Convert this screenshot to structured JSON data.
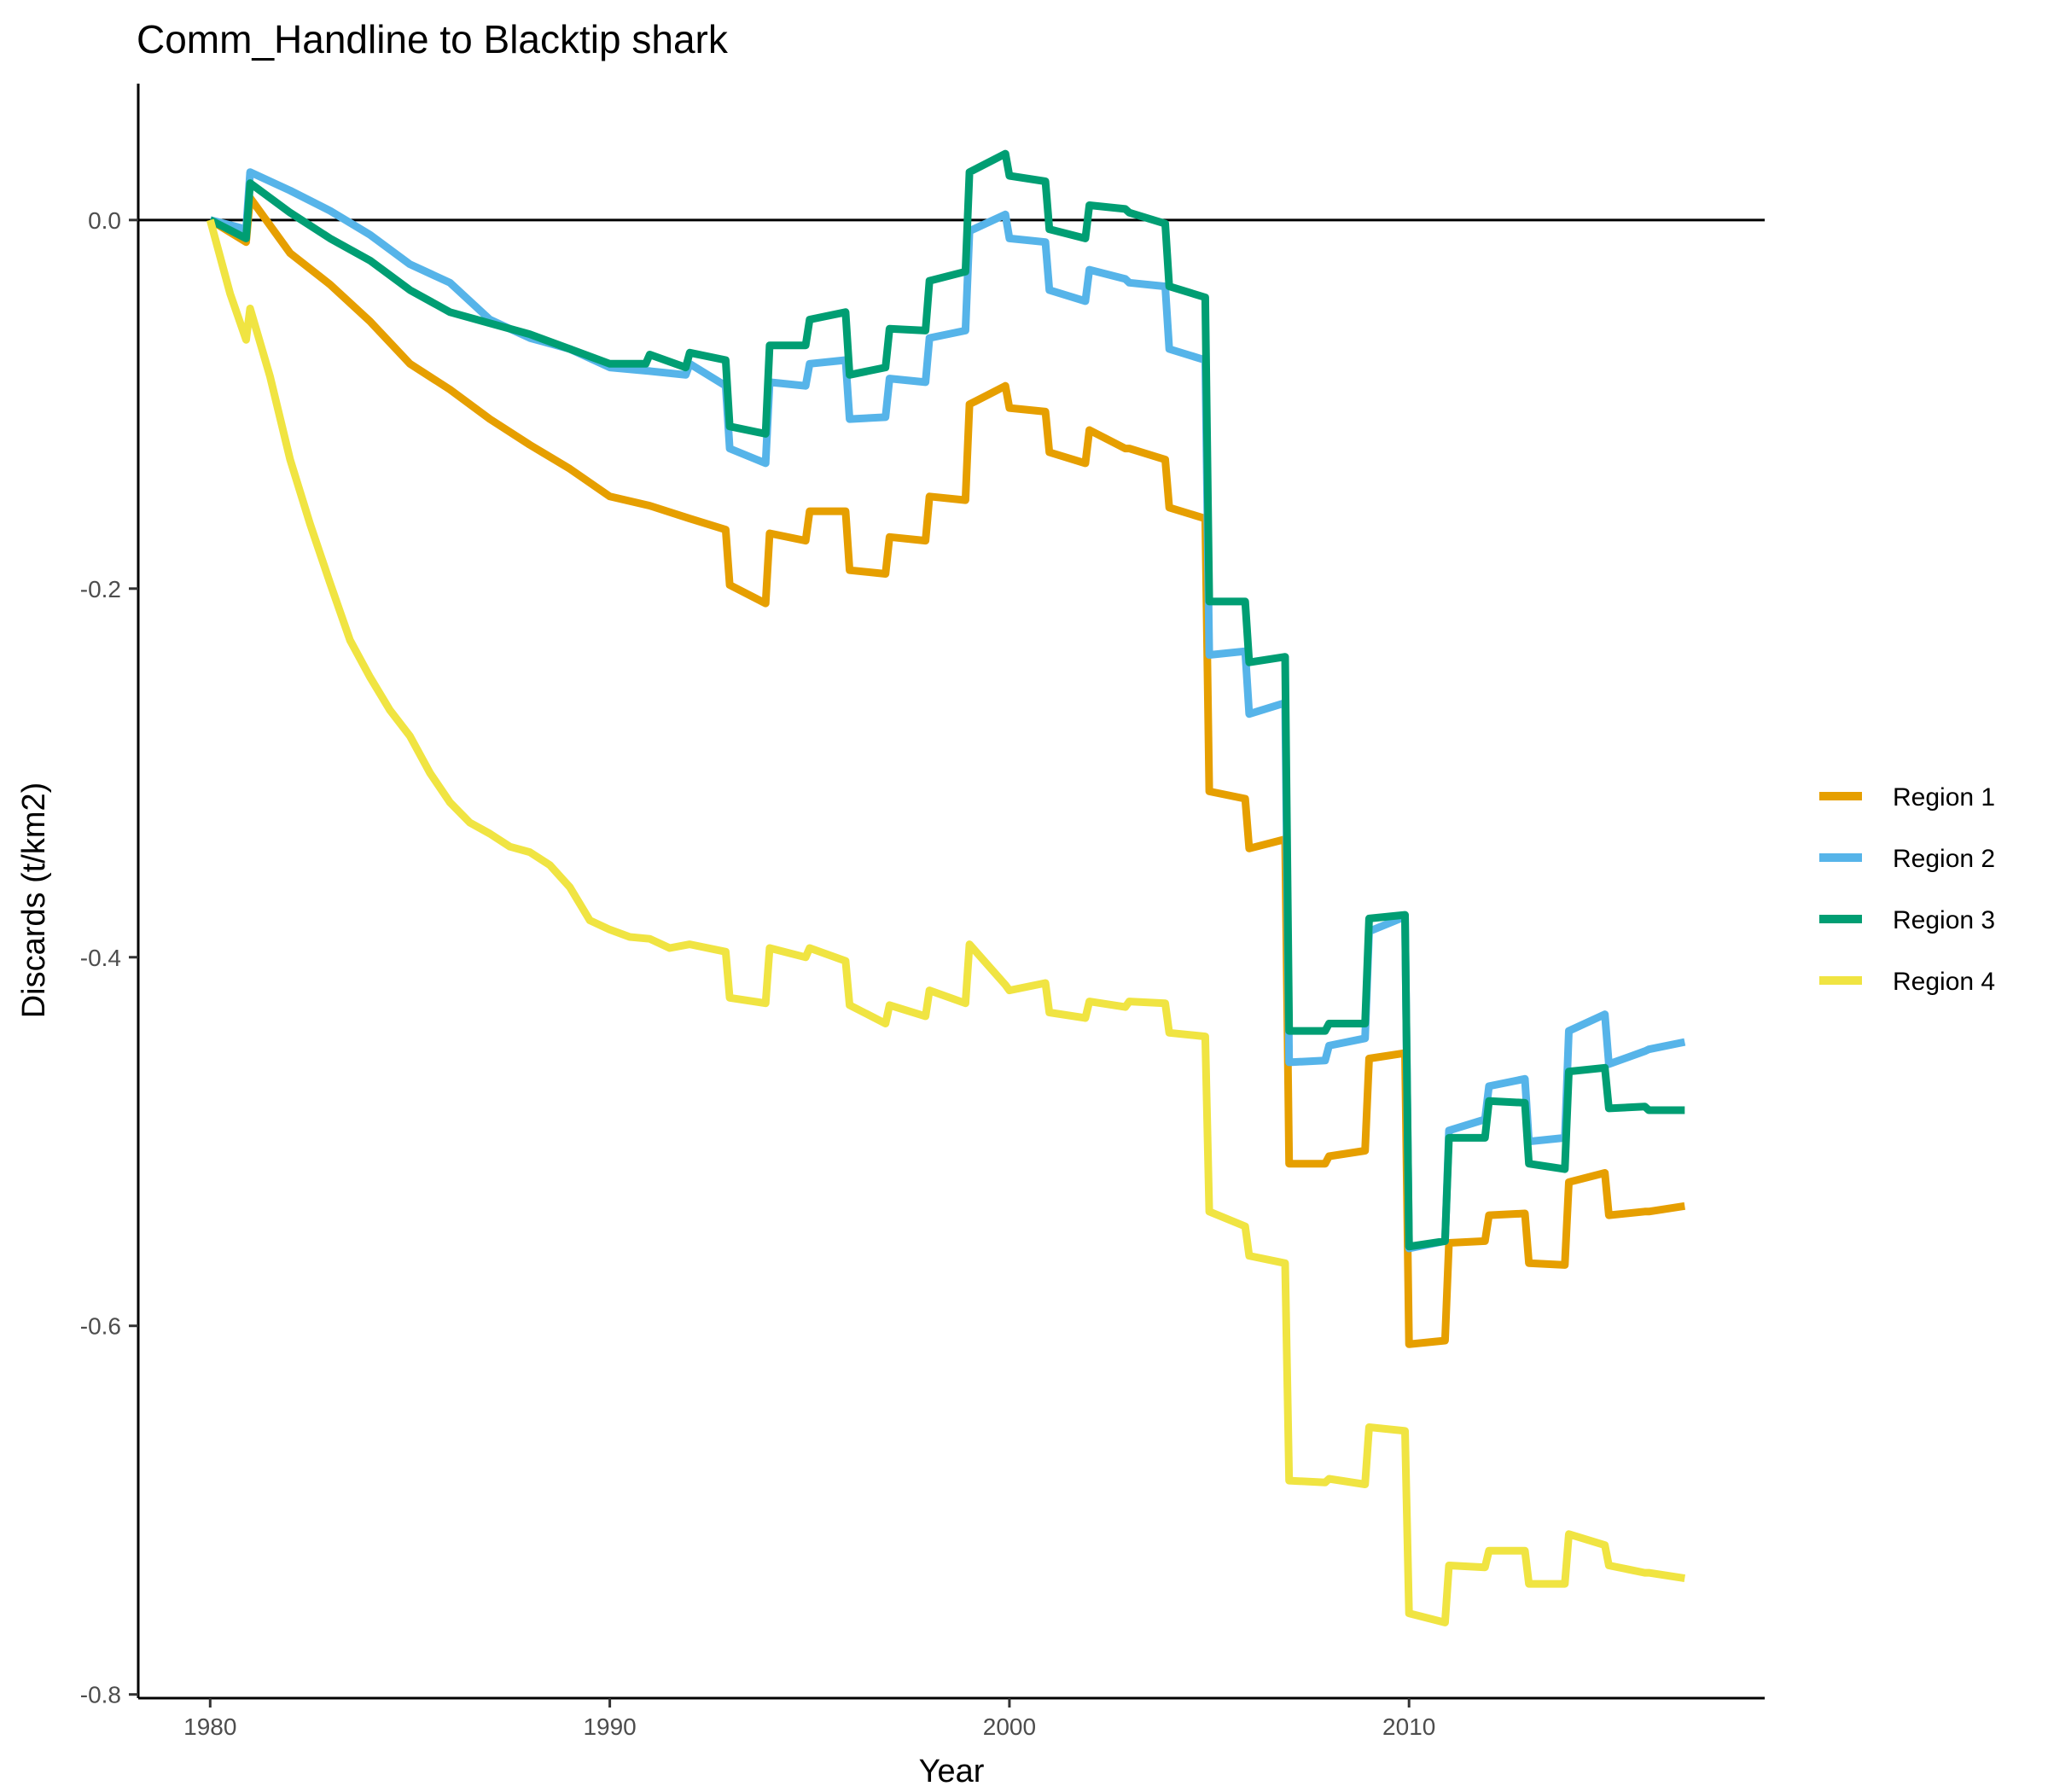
{
  "chart_data": {
    "type": "line",
    "title": "Comm_Handline to Blacktip shark",
    "xlabel": "Year",
    "ylabel": "Discards (t/km2)",
    "xlim": [
      1978.2,
      2018.9
    ],
    "ylim": [
      -0.802,
      0.074
    ],
    "xticks": [
      1980,
      1990,
      2000,
      2010
    ],
    "xtick_labels": [
      "1980",
      "1990",
      "2000",
      "2010"
    ],
    "yticks": [
      0.0,
      -0.2,
      -0.4,
      -0.6,
      -0.8
    ],
    "ytick_labels": [
      "0.0",
      "-0.2",
      "-0.4",
      "-0.6",
      "-0.8"
    ],
    "reference_line_y": 0,
    "grid": false,
    "legend_position": "right",
    "series": [
      {
        "name": "Region 1",
        "color": "#E69F00",
        "points": [
          [
            1980.0,
            0.0
          ],
          [
            1980.9,
            -0.012
          ],
          [
            1981.0,
            0.012
          ],
          [
            1982.0,
            -0.018
          ],
          [
            1983.0,
            -0.035
          ],
          [
            1984.0,
            -0.055
          ],
          [
            1985.0,
            -0.078
          ],
          [
            1986.0,
            -0.092
          ],
          [
            1987.0,
            -0.108
          ],
          [
            1988.0,
            -0.122
          ],
          [
            1989.0,
            -0.135
          ],
          [
            1990.0,
            -0.15
          ],
          [
            1991.0,
            -0.155
          ],
          [
            1992.0,
            -0.162
          ],
          [
            1992.9,
            -0.168
          ],
          [
            1993.0,
            -0.198
          ],
          [
            1993.9,
            -0.208
          ],
          [
            1994.0,
            -0.17
          ],
          [
            1994.9,
            -0.174
          ],
          [
            1995.0,
            -0.158
          ],
          [
            1995.9,
            -0.158
          ],
          [
            1996.0,
            -0.19
          ],
          [
            1996.9,
            -0.192
          ],
          [
            1997.0,
            -0.172
          ],
          [
            1997.9,
            -0.174
          ],
          [
            1998.0,
            -0.15
          ],
          [
            1998.9,
            -0.152
          ],
          [
            1999.0,
            -0.1
          ],
          [
            1999.9,
            -0.09
          ],
          [
            2000.0,
            -0.102
          ],
          [
            2000.9,
            -0.104
          ],
          [
            2001.0,
            -0.126
          ],
          [
            2001.9,
            -0.132
          ],
          [
            2002.0,
            -0.114
          ],
          [
            2002.9,
            -0.124
          ],
          [
            2003.0,
            -0.124
          ],
          [
            2003.9,
            -0.13
          ],
          [
            2004.0,
            -0.156
          ],
          [
            2004.9,
            -0.162
          ],
          [
            2005.0,
            -0.31
          ],
          [
            2005.9,
            -0.314
          ],
          [
            2006.0,
            -0.341
          ],
          [
            2006.9,
            -0.336
          ],
          [
            2007.0,
            -0.512
          ],
          [
            2007.9,
            -0.512
          ],
          [
            2008.0,
            -0.508
          ],
          [
            2008.9,
            -0.505
          ],
          [
            2009.0,
            -0.455
          ],
          [
            2009.9,
            -0.452
          ],
          [
            2010.0,
            -0.61
          ],
          [
            2010.9,
            -0.608
          ],
          [
            2011.0,
            -0.555
          ],
          [
            2011.9,
            -0.554
          ],
          [
            2012.0,
            -0.54
          ],
          [
            2012.9,
            -0.539
          ],
          [
            2013.0,
            -0.566
          ],
          [
            2013.9,
            -0.567
          ],
          [
            2014.0,
            -0.522
          ],
          [
            2014.9,
            -0.517
          ],
          [
            2015.0,
            -0.54
          ],
          [
            2015.9,
            -0.538
          ],
          [
            2016.0,
            -0.538
          ],
          [
            2016.9,
            -0.535
          ]
        ]
      },
      {
        "name": "Region 2",
        "color": "#56B4E9",
        "points": [
          [
            1980.0,
            0.0
          ],
          [
            1980.9,
            -0.005
          ],
          [
            1981.0,
            0.026
          ],
          [
            1982.0,
            0.016
          ],
          [
            1983.0,
            0.005
          ],
          [
            1984.0,
            -0.008
          ],
          [
            1985.0,
            -0.024
          ],
          [
            1986.0,
            -0.034
          ],
          [
            1987.0,
            -0.054
          ],
          [
            1988.0,
            -0.064
          ],
          [
            1989.0,
            -0.07
          ],
          [
            1990.0,
            -0.08
          ],
          [
            1991.0,
            -0.082
          ],
          [
            1991.9,
            -0.084
          ],
          [
            1992.0,
            -0.078
          ],
          [
            1992.9,
            -0.09
          ],
          [
            1993.0,
            -0.124
          ],
          [
            1993.9,
            -0.132
          ],
          [
            1994.0,
            -0.088
          ],
          [
            1994.9,
            -0.09
          ],
          [
            1995.0,
            -0.078
          ],
          [
            1995.9,
            -0.076
          ],
          [
            1996.0,
            -0.108
          ],
          [
            1996.9,
            -0.107
          ],
          [
            1997.0,
            -0.086
          ],
          [
            1997.9,
            -0.088
          ],
          [
            1998.0,
            -0.064
          ],
          [
            1998.9,
            -0.06
          ],
          [
            1999.0,
            -0.006
          ],
          [
            1999.9,
            0.003
          ],
          [
            2000.0,
            -0.01
          ],
          [
            2000.9,
            -0.012
          ],
          [
            2001.0,
            -0.038
          ],
          [
            2001.9,
            -0.044
          ],
          [
            2002.0,
            -0.027
          ],
          [
            2002.9,
            -0.032
          ],
          [
            2003.0,
            -0.034
          ],
          [
            2003.9,
            -0.036
          ],
          [
            2004.0,
            -0.07
          ],
          [
            2004.9,
            -0.076
          ],
          [
            2005.0,
            -0.236
          ],
          [
            2005.9,
            -0.234
          ],
          [
            2006.0,
            -0.268
          ],
          [
            2006.9,
            -0.262
          ],
          [
            2007.0,
            -0.457
          ],
          [
            2007.9,
            -0.456
          ],
          [
            2008.0,
            -0.448
          ],
          [
            2008.9,
            -0.444
          ],
          [
            2009.0,
            -0.386
          ],
          [
            2009.9,
            -0.378
          ],
          [
            2010.0,
            -0.558
          ],
          [
            2010.9,
            -0.554
          ],
          [
            2011.0,
            -0.494
          ],
          [
            2011.9,
            -0.488
          ],
          [
            2012.0,
            -0.47
          ],
          [
            2012.9,
            -0.466
          ],
          [
            2013.0,
            -0.5
          ],
          [
            2013.9,
            -0.498
          ],
          [
            2014.0,
            -0.44
          ],
          [
            2014.9,
            -0.431
          ],
          [
            2015.0,
            -0.458
          ],
          [
            2015.9,
            -0.451
          ],
          [
            2016.0,
            -0.45
          ],
          [
            2016.9,
            -0.446
          ]
        ]
      },
      {
        "name": "Region 3",
        "color": "#009E73",
        "points": [
          [
            1980.0,
            0.0
          ],
          [
            1980.9,
            -0.01
          ],
          [
            1981.0,
            0.02
          ],
          [
            1982.0,
            0.004
          ],
          [
            1983.0,
            -0.01
          ],
          [
            1984.0,
            -0.022
          ],
          [
            1985.0,
            -0.038
          ],
          [
            1986.0,
            -0.05
          ],
          [
            1987.0,
            -0.056
          ],
          [
            1988.0,
            -0.062
          ],
          [
            1989.0,
            -0.07
          ],
          [
            1990.0,
            -0.078
          ],
          [
            1990.9,
            -0.078
          ],
          [
            1991.0,
            -0.073
          ],
          [
            1991.9,
            -0.08
          ],
          [
            1992.0,
            -0.072
          ],
          [
            1992.9,
            -0.076
          ],
          [
            1993.0,
            -0.112
          ],
          [
            1993.9,
            -0.116
          ],
          [
            1994.0,
            -0.068
          ],
          [
            1994.9,
            -0.068
          ],
          [
            1995.0,
            -0.054
          ],
          [
            1995.9,
            -0.05
          ],
          [
            1996.0,
            -0.084
          ],
          [
            1996.9,
            -0.08
          ],
          [
            1997.0,
            -0.059
          ],
          [
            1997.9,
            -0.06
          ],
          [
            1998.0,
            -0.033
          ],
          [
            1998.9,
            -0.028
          ],
          [
            1999.0,
            0.026
          ],
          [
            1999.9,
            0.036
          ],
          [
            2000.0,
            0.024
          ],
          [
            2000.9,
            0.021
          ],
          [
            2001.0,
            -0.005
          ],
          [
            2001.9,
            -0.01
          ],
          [
            2002.0,
            0.008
          ],
          [
            2002.9,
            0.006
          ],
          [
            2003.0,
            0.004
          ],
          [
            2003.9,
            -0.002
          ],
          [
            2004.0,
            -0.036
          ],
          [
            2004.9,
            -0.042
          ],
          [
            2005.0,
            -0.207
          ],
          [
            2005.9,
            -0.207
          ],
          [
            2006.0,
            -0.24
          ],
          [
            2006.9,
            -0.237
          ],
          [
            2007.0,
            -0.44
          ],
          [
            2007.9,
            -0.44
          ],
          [
            2008.0,
            -0.436
          ],
          [
            2008.9,
            -0.436
          ],
          [
            2009.0,
            -0.379
          ],
          [
            2009.9,
            -0.377
          ],
          [
            2010.0,
            -0.557
          ],
          [
            2010.9,
            -0.554
          ],
          [
            2011.0,
            -0.498
          ],
          [
            2011.9,
            -0.498
          ],
          [
            2012.0,
            -0.478
          ],
          [
            2012.9,
            -0.479
          ],
          [
            2013.0,
            -0.512
          ],
          [
            2013.9,
            -0.515
          ],
          [
            2014.0,
            -0.462
          ],
          [
            2014.9,
            -0.46
          ],
          [
            2015.0,
            -0.482
          ],
          [
            2015.9,
            -0.481
          ],
          [
            2016.0,
            -0.483
          ],
          [
            2016.9,
            -0.483
          ]
        ]
      },
      {
        "name": "Region 4",
        "color": "#F0E442",
        "points": [
          [
            1980.0,
            0.0
          ],
          [
            1980.5,
            -0.04
          ],
          [
            1980.9,
            -0.065
          ],
          [
            1981.0,
            -0.048
          ],
          [
            1981.5,
            -0.085
          ],
          [
            1982.0,
            -0.13
          ],
          [
            1982.5,
            -0.165
          ],
          [
            1983.0,
            -0.197
          ],
          [
            1983.5,
            -0.228
          ],
          [
            1984.0,
            -0.248
          ],
          [
            1984.5,
            -0.266
          ],
          [
            1985.0,
            -0.28
          ],
          [
            1985.5,
            -0.3
          ],
          [
            1986.0,
            -0.316
          ],
          [
            1986.5,
            -0.327
          ],
          [
            1987.0,
            -0.333
          ],
          [
            1987.5,
            -0.34
          ],
          [
            1988.0,
            -0.343
          ],
          [
            1988.5,
            -0.35
          ],
          [
            1989.0,
            -0.362
          ],
          [
            1989.5,
            -0.38
          ],
          [
            1990.0,
            -0.385
          ],
          [
            1990.5,
            -0.389
          ],
          [
            1991.0,
            -0.39
          ],
          [
            1991.5,
            -0.395
          ],
          [
            1992.0,
            -0.393
          ],
          [
            1992.9,
            -0.397
          ],
          [
            1993.0,
            -0.422
          ],
          [
            1993.9,
            -0.425
          ],
          [
            1994.0,
            -0.395
          ],
          [
            1994.9,
            -0.4
          ],
          [
            1995.0,
            -0.395
          ],
          [
            1995.9,
            -0.402
          ],
          [
            1996.0,
            -0.426
          ],
          [
            1996.9,
            -0.436
          ],
          [
            1997.0,
            -0.426
          ],
          [
            1997.9,
            -0.432
          ],
          [
            1998.0,
            -0.418
          ],
          [
            1998.9,
            -0.425
          ],
          [
            1999.0,
            -0.393
          ],
          [
            1999.9,
            -0.415
          ],
          [
            2000.0,
            -0.418
          ],
          [
            2000.9,
            -0.414
          ],
          [
            2001.0,
            -0.43
          ],
          [
            2001.9,
            -0.433
          ],
          [
            2002.0,
            -0.424
          ],
          [
            2002.9,
            -0.427
          ],
          [
            2003.0,
            -0.424
          ],
          [
            2003.9,
            -0.425
          ],
          [
            2004.0,
            -0.441
          ],
          [
            2004.9,
            -0.443
          ],
          [
            2005.0,
            -0.538
          ],
          [
            2005.9,
            -0.546
          ],
          [
            2006.0,
            -0.562
          ],
          [
            2006.9,
            -0.566
          ],
          [
            2007.0,
            -0.684
          ],
          [
            2007.9,
            -0.685
          ],
          [
            2008.0,
            -0.683
          ],
          [
            2008.9,
            -0.686
          ],
          [
            2009.0,
            -0.655
          ],
          [
            2009.9,
            -0.657
          ],
          [
            2010.0,
            -0.756
          ],
          [
            2010.9,
            -0.761
          ],
          [
            2011.0,
            -0.73
          ],
          [
            2011.9,
            -0.731
          ],
          [
            2012.0,
            -0.722
          ],
          [
            2012.9,
            -0.722
          ],
          [
            2013.0,
            -0.74
          ],
          [
            2013.9,
            -0.74
          ],
          [
            2014.0,
            -0.713
          ],
          [
            2014.9,
            -0.719
          ],
          [
            2015.0,
            -0.73
          ],
          [
            2015.9,
            -0.734
          ],
          [
            2016.0,
            -0.734
          ],
          [
            2016.9,
            -0.737
          ]
        ]
      }
    ]
  }
}
